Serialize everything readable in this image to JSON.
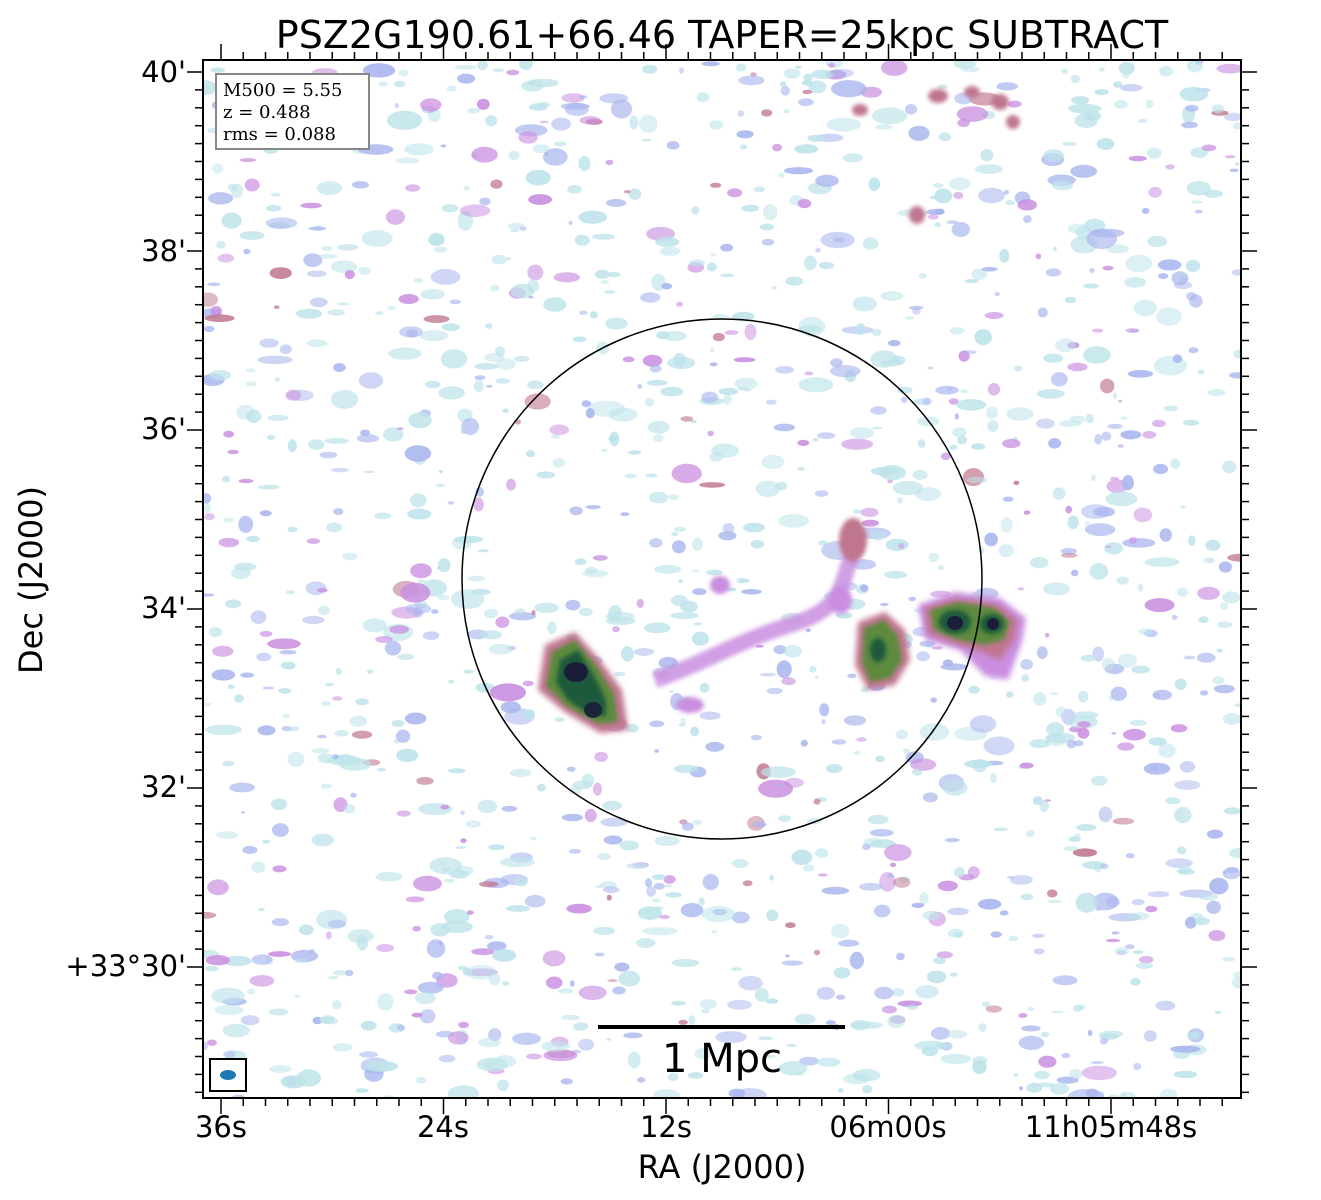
{
  "title": "PSZ2G190.61+66.46 TAPER=25kpc SUBTRACT",
  "info_box": {
    "line1": "M500 = 5.55",
    "line2": "z = 0.488",
    "line3": "rms = 0.088"
  },
  "x_axis": {
    "label": "RA (J2000)",
    "ticks": [
      "36s",
      "24s",
      "12s",
      "06m00s",
      "11h05m48s"
    ]
  },
  "y_axis": {
    "label": "Dec (J2000)",
    "ticks": [
      "40'",
      "38'",
      "36'",
      "34'",
      "32'",
      "+33°30'"
    ]
  },
  "scalebar": {
    "label": "1 Mpc"
  },
  "beam_color": "#1f77b4",
  "colormap": [
    "#ffffff",
    "#bde3ea",
    "#a9b6ee",
    "#c98ee0",
    "#c0768f",
    "#5d8a3c",
    "#1f5a3a",
    "#1b1e3a"
  ]
}
